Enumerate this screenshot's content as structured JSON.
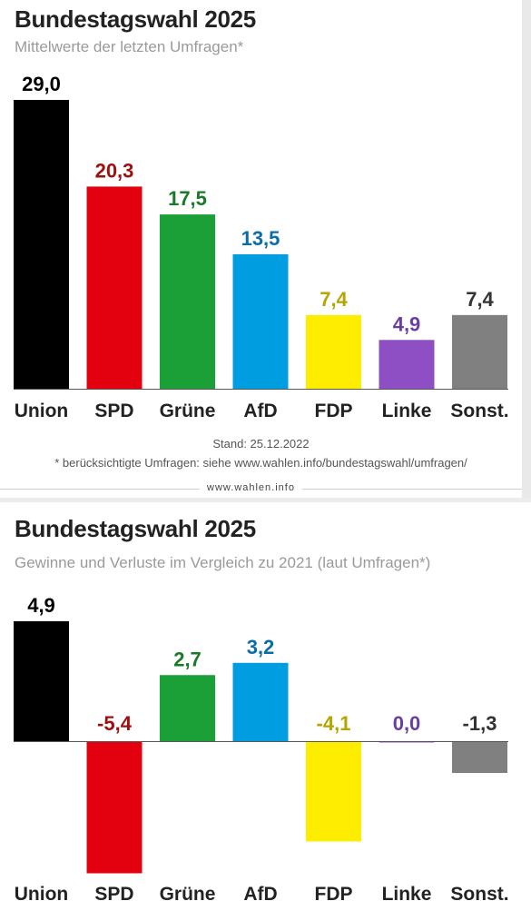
{
  "chart_data": [
    {
      "type": "bar",
      "title": "Bundestagswahl 2025",
      "subtitle": "Mittelwerte der letzten Umfragen*",
      "categories": [
        "Union",
        "SPD",
        "Grüne",
        "AfD",
        "FDP",
        "Linke",
        "Sonst."
      ],
      "values": [
        29.0,
        20.3,
        17.5,
        13.5,
        7.4,
        4.9,
        7.4
      ],
      "value_labels": [
        "29,0",
        "20,3",
        "17,5",
        "13,5",
        "7,4",
        "4,9",
        "7,4"
      ],
      "colors": [
        "#000000",
        "#e3000f",
        "#1aa037",
        "#009ee0",
        "#ffed00",
        "#8f4fc4",
        "#808080"
      ],
      "label_colors": [
        "#000000",
        "#9e1010",
        "#1a7a2a",
        "#0a6ea6",
        "#b8a400",
        "#6a3ea0",
        "#333333"
      ],
      "ylim": [
        0,
        29
      ],
      "xlabel": "",
      "ylabel": "",
      "grid": false,
      "legend": "none"
    },
    {
      "type": "bar",
      "title": "Bundestagswahl 2025",
      "subtitle": "Gewinne und Verluste im Vergleich zu 2021 (laut Umfragen*)",
      "categories": [
        "Union",
        "SPD",
        "Grüne",
        "AfD",
        "FDP",
        "Linke",
        "Sonst."
      ],
      "values": [
        4.9,
        -5.4,
        2.7,
        3.2,
        -4.1,
        0.0,
        -1.3
      ],
      "value_labels": [
        "4,9",
        "-5,4",
        "2,7",
        "3,2",
        "-4,1",
        "0,0",
        "-1,3"
      ],
      "colors": [
        "#000000",
        "#e3000f",
        "#1aa037",
        "#009ee0",
        "#ffed00",
        "#8f4fc4",
        "#808080"
      ],
      "label_colors": [
        "#000000",
        "#9e1010",
        "#1a7a2a",
        "#0a6ea6",
        "#b8a400",
        "#6a3ea0",
        "#333333"
      ],
      "ylim": [
        -5.4,
        4.9
      ],
      "xlabel": "",
      "ylabel": "",
      "grid": false,
      "legend": "none"
    }
  ],
  "footer": {
    "stand": "Stand: 25.12.2022",
    "note": "* berücksichtigte Umfragen: siehe www.wahlen.info/bundestagswahl/umfragen/",
    "source": "www.wahlen.info"
  }
}
